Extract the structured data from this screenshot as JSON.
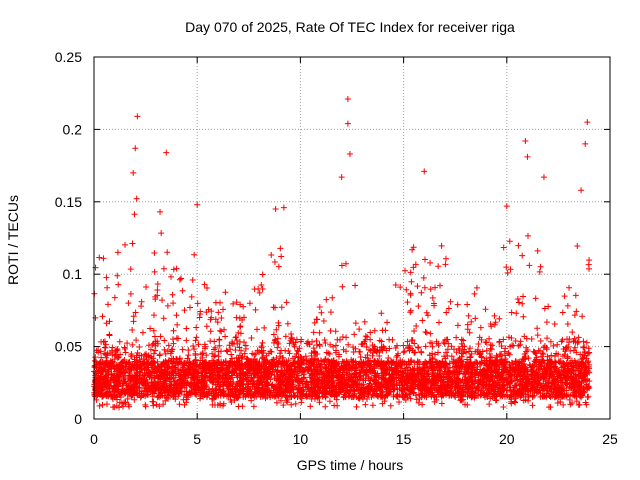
{
  "chart_data": {
    "type": "scatter",
    "title": "Day 070 of 2025, Rate Of TEC Index for receiver riga",
    "xlabel": "GPS time / hours",
    "ylabel": "ROTI / TECUs",
    "xlim": [
      0,
      25
    ],
    "ylim": [
      0,
      0.25
    ],
    "x_ticks": [
      0,
      5,
      10,
      15,
      20,
      25
    ],
    "x_tick_labels": [
      "0",
      "5",
      "10",
      "15",
      "20",
      "25"
    ],
    "y_ticks": [
      0,
      0.05,
      0.1,
      0.15,
      0.2,
      0.25
    ],
    "y_tick_labels": [
      "0",
      "0.05",
      "0.1",
      "0.15",
      "0.2",
      "0.25"
    ],
    "grid": true,
    "marker": "+",
    "color": "#ff0000",
    "x_range_of_data": [
      0,
      24
    ],
    "base_band_typical": [
      0.015,
      0.04
    ],
    "peaks": [
      {
        "x": 2.1,
        "y": 0.209
      },
      {
        "x": 2.0,
        "y": 0.187
      },
      {
        "x": 1.9,
        "y": 0.17
      },
      {
        "x": 3.5,
        "y": 0.184
      },
      {
        "x": 3.2,
        "y": 0.143
      },
      {
        "x": 5.0,
        "y": 0.148
      },
      {
        "x": 9.2,
        "y": 0.146
      },
      {
        "x": 8.8,
        "y": 0.145
      },
      {
        "x": 12.3,
        "y": 0.221
      },
      {
        "x": 12.3,
        "y": 0.204
      },
      {
        "x": 12.4,
        "y": 0.183
      },
      {
        "x": 12.0,
        "y": 0.167
      },
      {
        "x": 16.0,
        "y": 0.171
      },
      {
        "x": 20.0,
        "y": 0.147
      },
      {
        "x": 20.9,
        "y": 0.192
      },
      {
        "x": 21.8,
        "y": 0.167
      },
      {
        "x": 21.0,
        "y": 0.181
      },
      {
        "x": 23.9,
        "y": 0.205
      },
      {
        "x": 23.8,
        "y": 0.19
      },
      {
        "x": 23.6,
        "y": 0.158
      }
    ],
    "activity_envelope": [
      {
        "x": 0.0,
        "y": 0.13
      },
      {
        "x": 0.5,
        "y": 0.11
      },
      {
        "x": 1.0,
        "y": 0.13
      },
      {
        "x": 1.5,
        "y": 0.12
      },
      {
        "x": 2.0,
        "y": 0.17
      },
      {
        "x": 2.5,
        "y": 0.1
      },
      {
        "x": 3.0,
        "y": 0.14
      },
      {
        "x": 3.5,
        "y": 0.12
      },
      {
        "x": 4.0,
        "y": 0.11
      },
      {
        "x": 4.5,
        "y": 0.1
      },
      {
        "x": 5.0,
        "y": 0.14
      },
      {
        "x": 5.5,
        "y": 0.09
      },
      {
        "x": 6.0,
        "y": 0.09
      },
      {
        "x": 6.5,
        "y": 0.09
      },
      {
        "x": 7.0,
        "y": 0.08
      },
      {
        "x": 7.5,
        "y": 0.08
      },
      {
        "x": 8.0,
        "y": 0.1
      },
      {
        "x": 8.5,
        "y": 0.11
      },
      {
        "x": 9.0,
        "y": 0.14
      },
      {
        "x": 9.5,
        "y": 0.07
      },
      {
        "x": 10.0,
        "y": 0.05
      },
      {
        "x": 10.5,
        "y": 0.06
      },
      {
        "x": 11.0,
        "y": 0.09
      },
      {
        "x": 11.5,
        "y": 0.08
      },
      {
        "x": 12.0,
        "y": 0.15
      },
      {
        "x": 12.5,
        "y": 0.12
      },
      {
        "x": 13.0,
        "y": 0.07
      },
      {
        "x": 13.5,
        "y": 0.06
      },
      {
        "x": 14.0,
        "y": 0.08
      },
      {
        "x": 14.5,
        "y": 0.09
      },
      {
        "x": 15.0,
        "y": 0.13
      },
      {
        "x": 15.5,
        "y": 0.12
      },
      {
        "x": 16.0,
        "y": 0.13
      },
      {
        "x": 16.5,
        "y": 0.11
      },
      {
        "x": 17.0,
        "y": 0.13
      },
      {
        "x": 17.5,
        "y": 0.08
      },
      {
        "x": 18.0,
        "y": 0.1
      },
      {
        "x": 18.5,
        "y": 0.11
      },
      {
        "x": 19.0,
        "y": 0.08
      },
      {
        "x": 19.5,
        "y": 0.07
      },
      {
        "x": 20.0,
        "y": 0.14
      },
      {
        "x": 20.5,
        "y": 0.12
      },
      {
        "x": 21.0,
        "y": 0.13
      },
      {
        "x": 21.5,
        "y": 0.14
      },
      {
        "x": 22.0,
        "y": 0.08
      },
      {
        "x": 22.5,
        "y": 0.09
      },
      {
        "x": 23.0,
        "y": 0.09
      },
      {
        "x": 23.5,
        "y": 0.13
      },
      {
        "x": 24.0,
        "y": 0.13
      }
    ]
  }
}
